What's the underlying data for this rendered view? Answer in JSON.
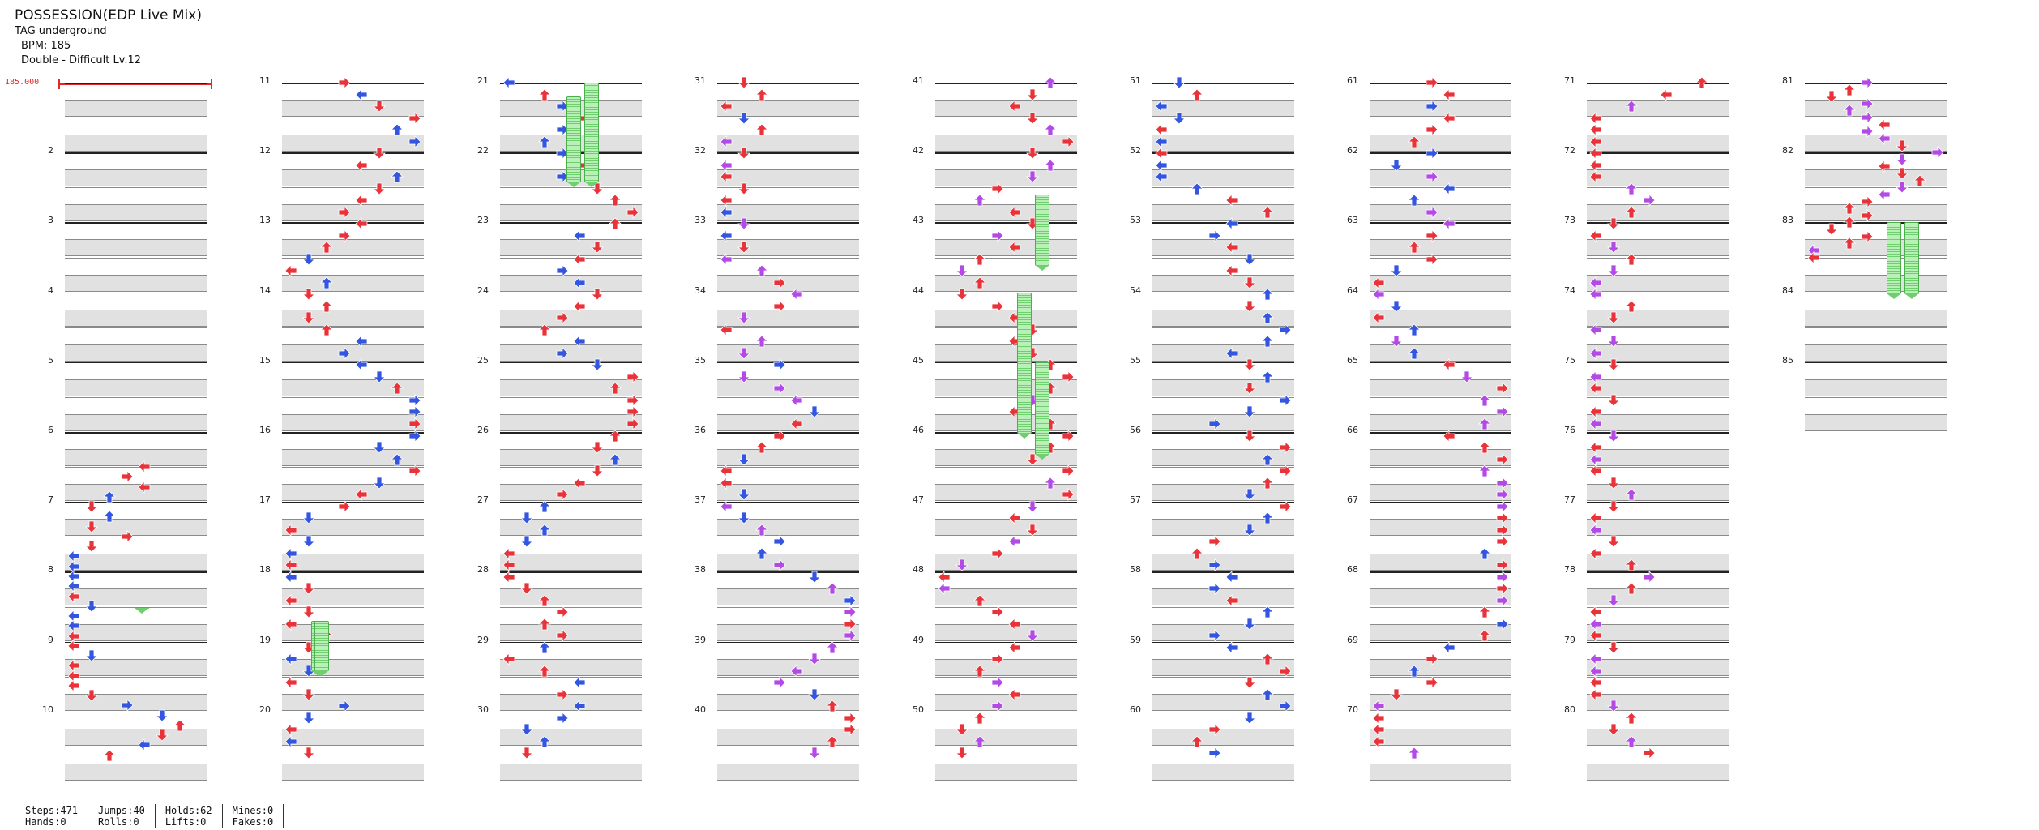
{
  "song": {
    "title": "POSSESSION(EDP Live Mix)",
    "artist": "TAG underground",
    "bpm_label": "BPM: 185",
    "difficulty_label": "Double - Difficult  Lv.12",
    "bpm_marker": "185.000"
  },
  "chart": {
    "measure_numbers": [
      "2",
      "3",
      "4",
      "5",
      "6",
      "7",
      "8",
      "9",
      "10",
      "11",
      "12",
      "13",
      "14",
      "15",
      "16",
      "17",
      "18",
      "19",
      "20",
      "21",
      "22",
      "23",
      "24",
      "25",
      "26",
      "27",
      "28",
      "29",
      "30",
      "31",
      "32",
      "33",
      "34",
      "35",
      "36",
      "37",
      "38",
      "39",
      "40",
      "41",
      "42",
      "43",
      "44",
      "45",
      "46",
      "47",
      "48",
      "49",
      "50",
      "51",
      "52",
      "53",
      "54",
      "55",
      "56",
      "57",
      "58",
      "59",
      "60",
      "61",
      "62",
      "63",
      "64",
      "65",
      "66",
      "67",
      "68",
      "69",
      "70",
      "71",
      "72",
      "73",
      "74",
      "75",
      "76",
      "77",
      "78",
      "79",
      "80",
      "81",
      "82",
      "83",
      "84",
      "85"
    ],
    "columns": 9,
    "measures_per_column": 10,
    "colors": {
      "quarter": "#e8333a",
      "eighth": "#3355e0",
      "sixteenth": "#b34ae6",
      "hold": "#8fe08f"
    }
  },
  "stats": [
    {
      "a": "Steps:471",
      "b": "Hands:0"
    },
    {
      "a": "Jumps:40",
      "b": "Rolls:0"
    },
    {
      "a": "Holds:62",
      "b": "Lifts:0"
    },
    {
      "a": "Mines:0",
      "b": "Fakes:0"
    }
  ]
}
